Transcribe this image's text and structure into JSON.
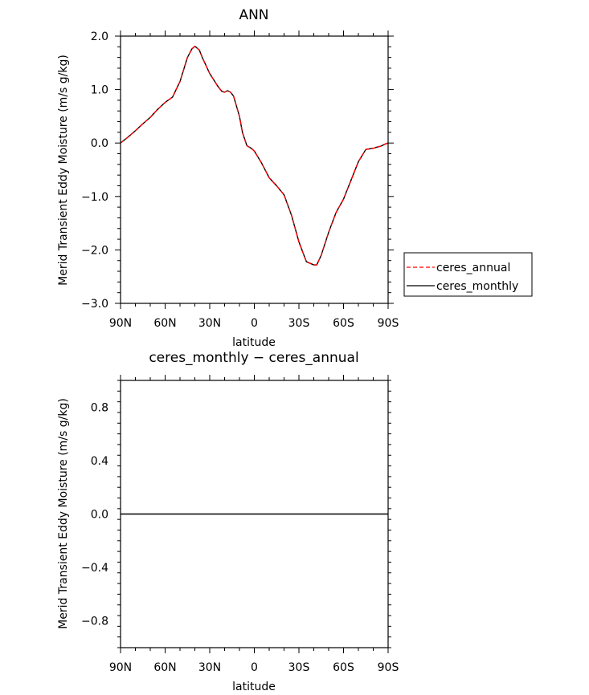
{
  "chart_data": [
    {
      "type": "line",
      "title": "ANN",
      "xlabel": "latitude",
      "ylabel": "Merid Transient Eddy Moisture (m/s g/kg)",
      "x_ticks": [
        {
          "value": 90,
          "label": "90N"
        },
        {
          "value": 60,
          "label": "60N"
        },
        {
          "value": 30,
          "label": "30N"
        },
        {
          "value": 0,
          "label": "0"
        },
        {
          "value": -30,
          "label": "30S"
        },
        {
          "value": -60,
          "label": "60S"
        },
        {
          "value": -90,
          "label": "90S"
        }
      ],
      "y_ticks": [
        {
          "value": 2.0,
          "label": "2.0"
        },
        {
          "value": 1.0,
          "label": "1.0"
        },
        {
          "value": 0.0,
          "label": "0.0"
        },
        {
          "value": -1.0,
          "label": "−1.0"
        },
        {
          "value": -2.0,
          "label": "−2.0"
        },
        {
          "value": -3.0,
          "label": "−3.0"
        }
      ],
      "xlim": [
        90,
        -90
      ],
      "ylim": [
        -3.0,
        2.0
      ],
      "legend_position": "right",
      "series": [
        {
          "name": "ceres_annual",
          "color": "#ff0000",
          "dash": "dashed",
          "x": [
            90,
            85,
            80,
            75,
            70,
            65,
            60,
            55,
            50,
            45,
            42,
            40,
            37,
            35,
            30,
            25,
            22,
            20,
            18,
            16,
            14,
            10,
            8,
            5,
            2,
            0,
            -5,
            -10,
            -15,
            -20,
            -25,
            -30,
            -35,
            -40,
            -42,
            -45,
            -50,
            -55,
            -60,
            -65,
            -70,
            -75,
            -80,
            -82,
            -85,
            -88,
            -90
          ],
          "y": [
            0.0,
            0.11,
            0.23,
            0.36,
            0.48,
            0.63,
            0.76,
            0.86,
            1.15,
            1.6,
            1.76,
            1.81,
            1.74,
            1.6,
            1.3,
            1.08,
            0.97,
            0.95,
            0.98,
            0.95,
            0.88,
            0.5,
            0.2,
            -0.05,
            -0.1,
            -0.15,
            -0.38,
            -0.65,
            -0.8,
            -0.97,
            -1.35,
            -1.85,
            -2.22,
            -2.28,
            -2.28,
            -2.1,
            -1.67,
            -1.3,
            -1.05,
            -0.7,
            -0.35,
            -0.12,
            -0.1,
            -0.08,
            -0.06,
            -0.02,
            0.0
          ]
        },
        {
          "name": "ceres_monthly",
          "color": "#000000",
          "dash": "solid",
          "x": [
            90,
            85,
            80,
            75,
            70,
            65,
            60,
            55,
            50,
            45,
            42,
            40,
            37,
            35,
            30,
            25,
            22,
            20,
            18,
            16,
            14,
            10,
            8,
            5,
            2,
            0,
            -5,
            -10,
            -15,
            -20,
            -25,
            -30,
            -35,
            -40,
            -42,
            -45,
            -50,
            -55,
            -60,
            -65,
            -70,
            -75,
            -80,
            -82,
            -85,
            -88,
            -90
          ],
          "y": [
            0.0,
            0.11,
            0.23,
            0.36,
            0.48,
            0.63,
            0.76,
            0.86,
            1.15,
            1.6,
            1.76,
            1.81,
            1.74,
            1.6,
            1.3,
            1.08,
            0.97,
            0.95,
            0.98,
            0.95,
            0.88,
            0.5,
            0.2,
            -0.05,
            -0.1,
            -0.15,
            -0.38,
            -0.65,
            -0.8,
            -0.97,
            -1.35,
            -1.85,
            -2.22,
            -2.28,
            -2.28,
            -2.1,
            -1.67,
            -1.3,
            -1.05,
            -0.7,
            -0.35,
            -0.12,
            -0.1,
            -0.08,
            -0.06,
            -0.02,
            0.0
          ]
        }
      ]
    },
    {
      "type": "line",
      "title": "ceres_monthly − ceres_annual",
      "xlabel": "latitude",
      "ylabel": "Merid Transient Eddy Moisture (m/s g/kg)",
      "x_ticks": [
        {
          "value": 90,
          "label": "90N"
        },
        {
          "value": 60,
          "label": "60N"
        },
        {
          "value": 30,
          "label": "30N"
        },
        {
          "value": 0,
          "label": "0"
        },
        {
          "value": -30,
          "label": "30S"
        },
        {
          "value": -60,
          "label": "60S"
        },
        {
          "value": -90,
          "label": "90S"
        }
      ],
      "y_ticks": [
        {
          "value": 0.8,
          "label": "0.8"
        },
        {
          "value": 0.4,
          "label": "0.4"
        },
        {
          "value": 0.0,
          "label": "0.0"
        },
        {
          "value": -0.4,
          "label": "−0.4"
        },
        {
          "value": -0.8,
          "label": "−0.8"
        }
      ],
      "xlim": [
        90,
        -90
      ],
      "ylim": [
        -1.0,
        1.0
      ],
      "series": [
        {
          "color": "#000000",
          "dash": "solid",
          "x": [
            90,
            -90
          ],
          "y": [
            0.0,
            0.0
          ]
        }
      ]
    }
  ]
}
